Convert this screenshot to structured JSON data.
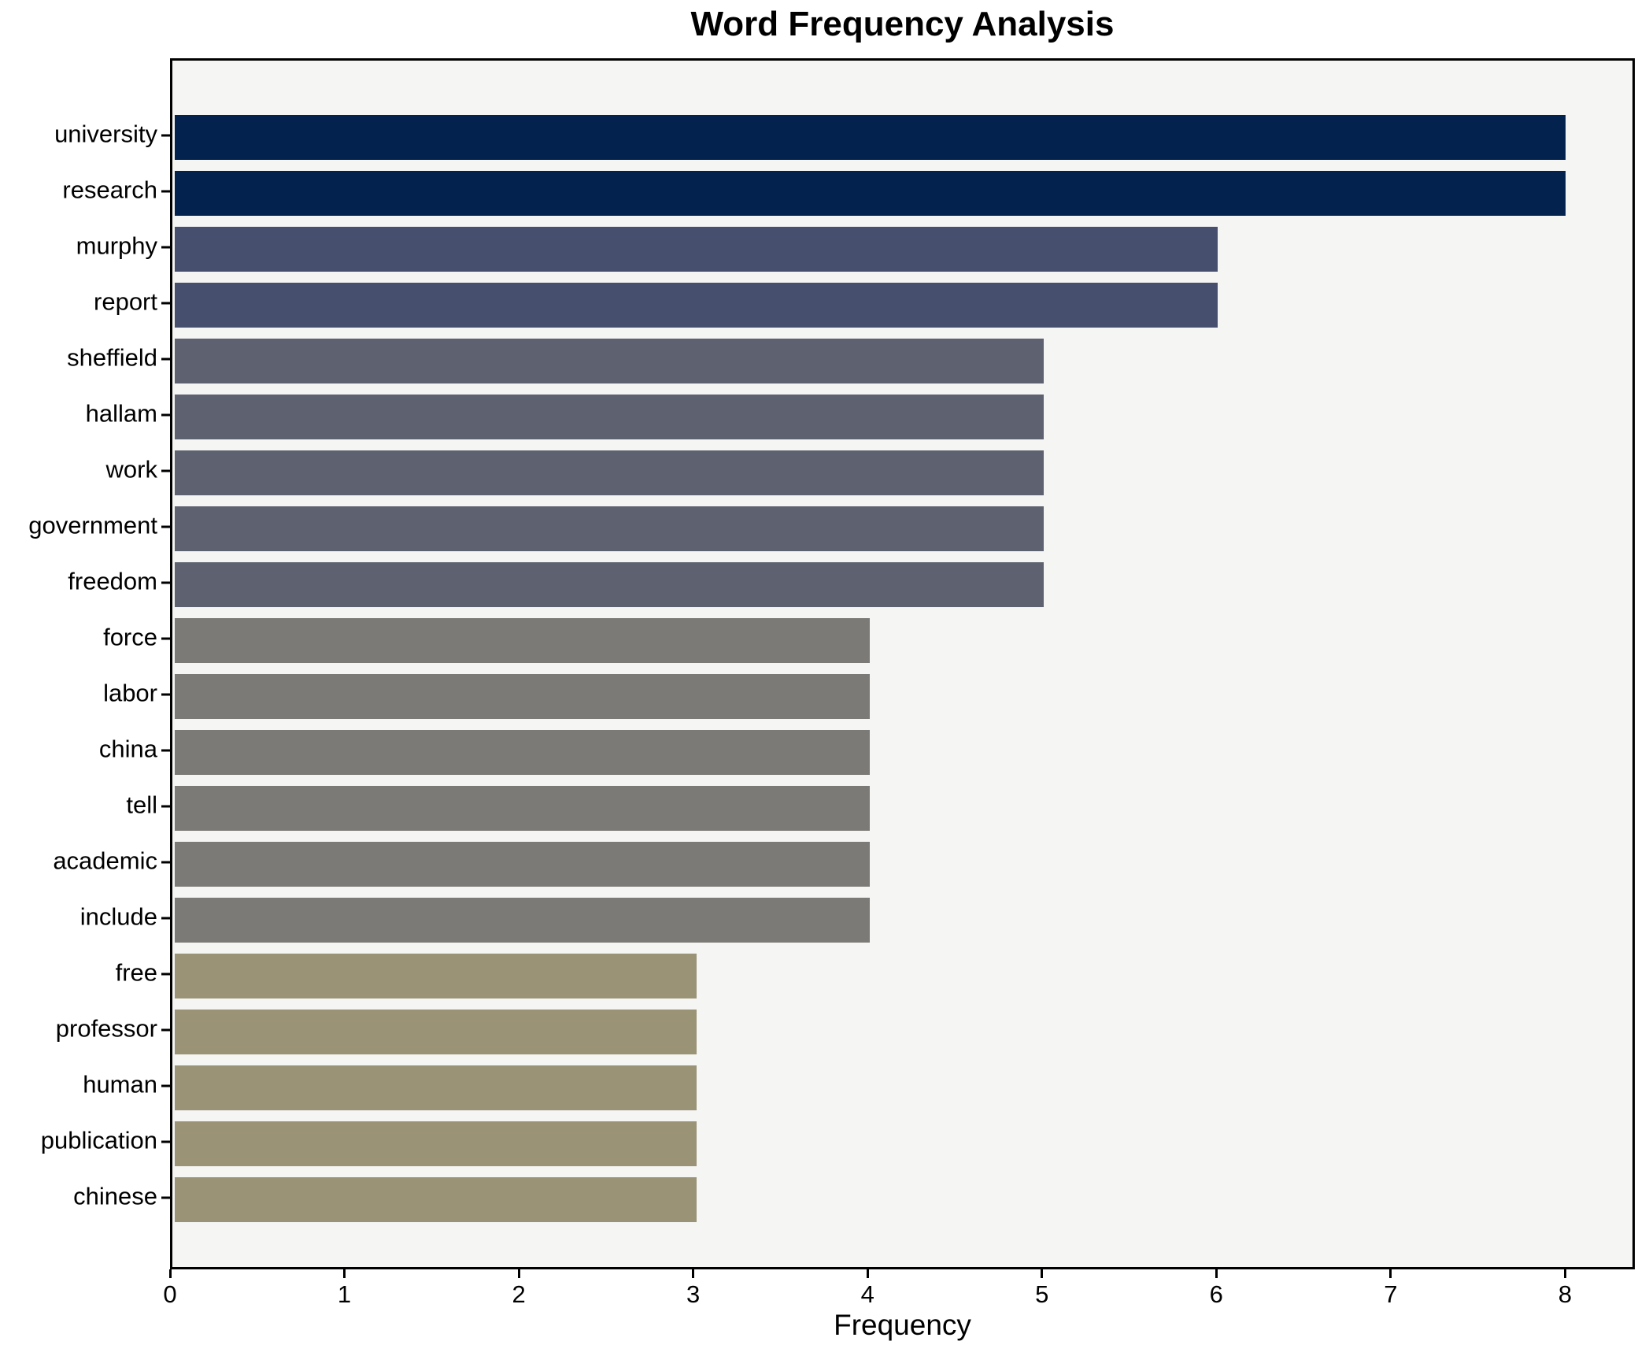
{
  "chart_data": {
    "type": "bar",
    "orientation": "horizontal",
    "title": "Word Frequency Analysis",
    "xlabel": "Frequency",
    "ylabel": "",
    "categories": [
      "university",
      "research",
      "murphy",
      "report",
      "sheffield",
      "hallam",
      "work",
      "government",
      "freedom",
      "force",
      "labor",
      "china",
      "tell",
      "academic",
      "include",
      "free",
      "professor",
      "human",
      "publication",
      "chinese"
    ],
    "values": [
      8,
      8,
      6,
      6,
      5,
      5,
      5,
      5,
      5,
      4,
      4,
      4,
      4,
      4,
      4,
      3,
      3,
      3,
      3,
      3
    ],
    "xlim": [
      0,
      8.4
    ],
    "x_ticks": [
      0,
      1,
      2,
      3,
      4,
      5,
      6,
      7,
      8
    ],
    "grid": false,
    "legend": false,
    "value_colors": {
      "8": "#03224d",
      "6": "#464f6d",
      "5": "#5e6270",
      "4": "#7b7a76",
      "3": "#9a9375"
    },
    "plot_background": "#f5f5f4",
    "axis_color": "#000000",
    "text_color": "#000000"
  }
}
